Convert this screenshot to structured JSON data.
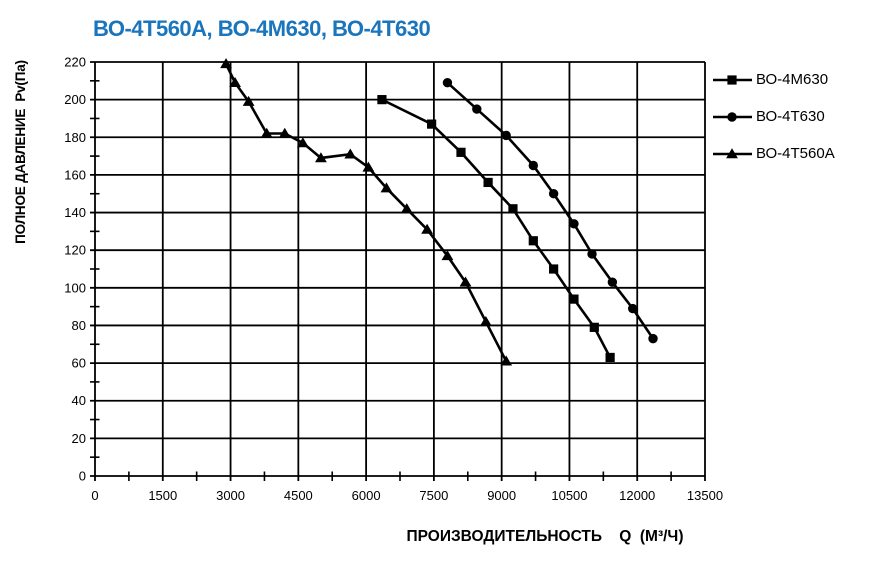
{
  "chart_data": {
    "type": "line",
    "title": "ВО-4Т560А, ВО-4М630, ВО-4Т630",
    "title_color": "#1B75BC",
    "line_color": "#000000",
    "xlabel": "ПРОИЗВОДИТЕЛЬНОСТЬ    Q  (М³/Ч)",
    "ylabel": "ПОЛНОЕ ДАВЛЕНИЕ  Pv(Па)",
    "xlim": [
      0,
      13500
    ],
    "ylim": [
      0,
      220
    ],
    "x_ticks": [
      0,
      1500,
      3000,
      4500,
      6000,
      7500,
      9000,
      10500,
      12000,
      13500
    ],
    "y_ticks": [
      0,
      20,
      40,
      60,
      80,
      100,
      120,
      140,
      160,
      180,
      200,
      220
    ],
    "x_major_step": 1500,
    "x_minor_step": 750,
    "y_major_step": 20,
    "y_minor_step": 10,
    "grid": true,
    "legend_position": "right-top",
    "series": [
      {
        "name": "ВО-4М630",
        "marker": "square",
        "points": [
          [
            6350,
            200
          ],
          [
            7450,
            187
          ],
          [
            8100,
            172
          ],
          [
            8700,
            156
          ],
          [
            9250,
            142
          ],
          [
            9700,
            125
          ],
          [
            10150,
            110
          ],
          [
            10600,
            94
          ],
          [
            11050,
            79
          ],
          [
            11400,
            63
          ]
        ]
      },
      {
        "name": "ВО-4Т630",
        "marker": "circle",
        "points": [
          [
            7800,
            209
          ],
          [
            8450,
            195
          ],
          [
            9100,
            181
          ],
          [
            9700,
            165
          ],
          [
            10150,
            150
          ],
          [
            10600,
            134
          ],
          [
            11000,
            118
          ],
          [
            11450,
            103
          ],
          [
            11900,
            89
          ],
          [
            12350,
            73
          ]
        ]
      },
      {
        "name": "ВО-4Т560А",
        "marker": "triangle",
        "points": [
          [
            2900,
            219
          ],
          [
            3100,
            209
          ],
          [
            3400,
            199
          ],
          [
            3800,
            182
          ],
          [
            4200,
            182
          ],
          [
            4600,
            177
          ],
          [
            5000,
            169
          ],
          [
            5650,
            171
          ],
          [
            6050,
            164
          ],
          [
            6450,
            153
          ],
          [
            6900,
            142
          ],
          [
            7350,
            131
          ],
          [
            7800,
            117
          ],
          [
            8200,
            103
          ],
          [
            8650,
            82
          ],
          [
            9100,
            61
          ]
        ]
      }
    ]
  }
}
